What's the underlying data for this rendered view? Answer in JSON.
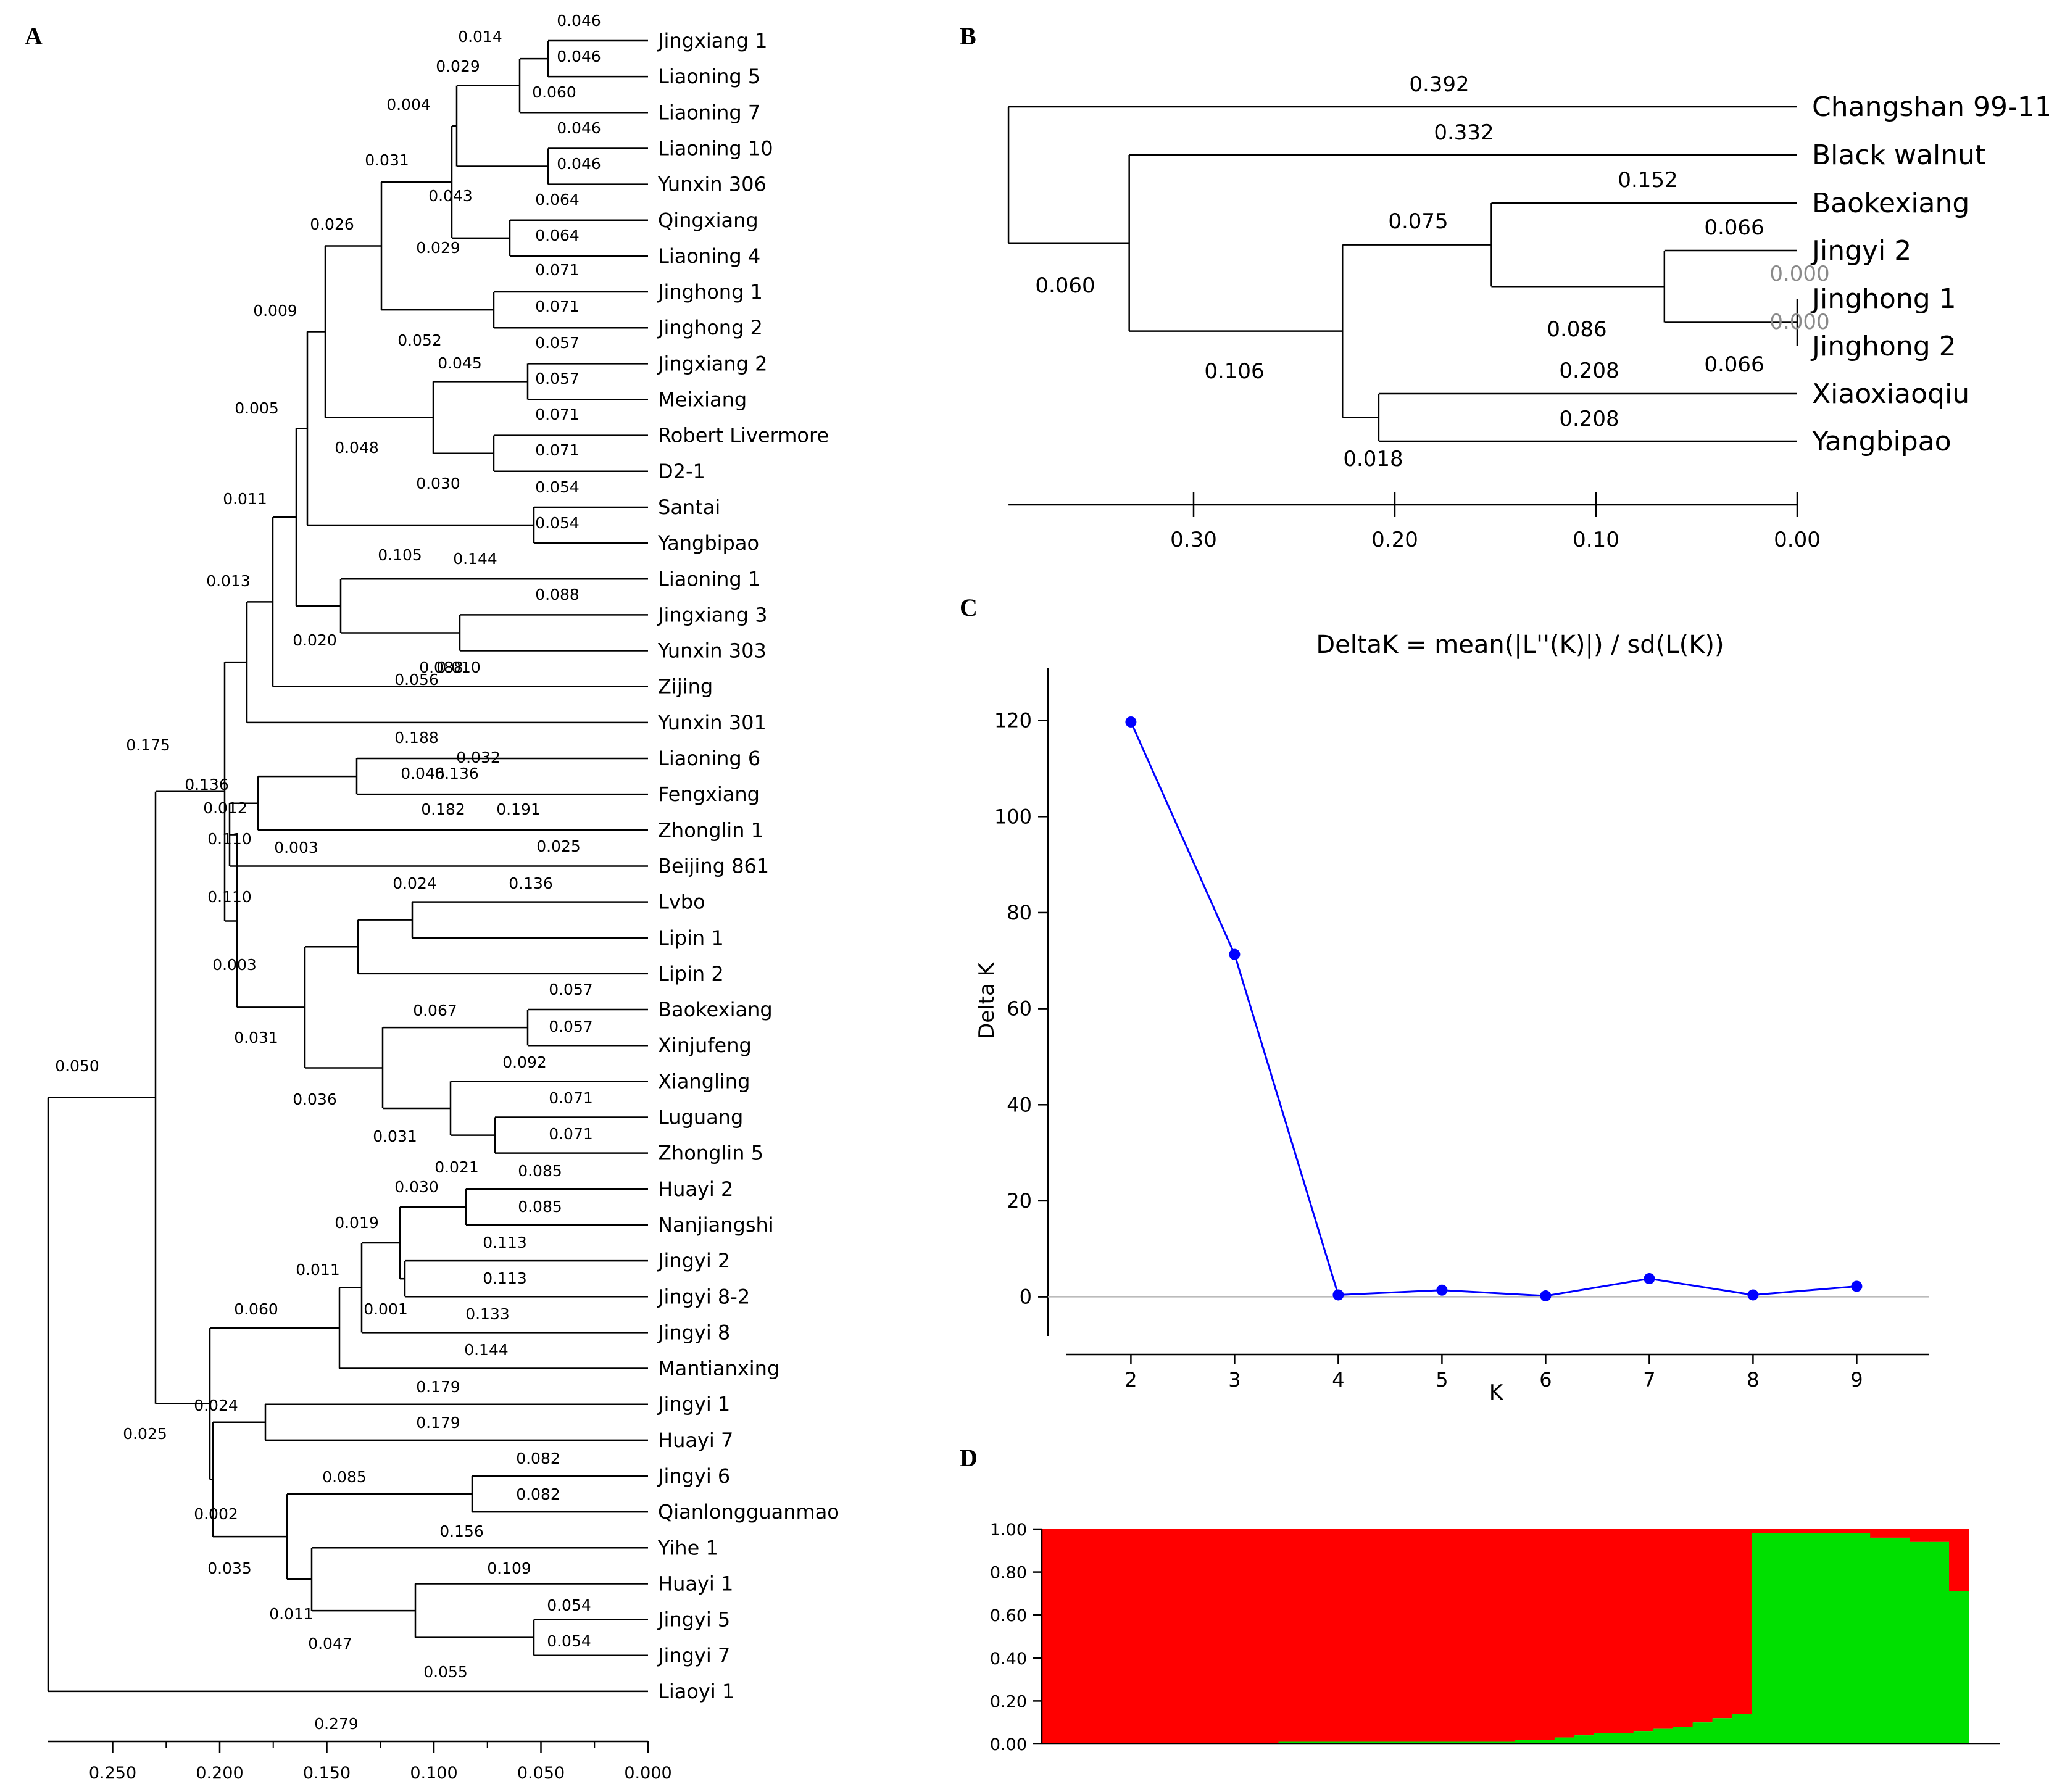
{
  "panels": {
    "A": {
      "letter": "A",
      "leaves": [
        "Jingxiang 1",
        "Liaoning 5",
        "Liaoning 7",
        "Liaoning 10",
        "Yunxin 306",
        "Qingxiang",
        "Liaoning 4",
        "Jinghong 1",
        "Jinghong 2",
        "Jingxiang 2",
        "Meixiang",
        "Robert Livermore",
        "D2-1",
        "Santai",
        "Yangbipao",
        "Liaoning 1",
        "Jingxiang 3",
        "Yunxin 303",
        "Zijing",
        "Yunxin 301",
        "Liaoning 6",
        "Fengxiang",
        "Zhonglin 1",
        "Beijing 861",
        "Lvbo",
        "Lipin 1",
        "Lipin 2",
        "Baokexiang",
        "Xinjufeng",
        "Xiangling",
        "Luguang",
        "Zhonglin 5",
        "Huayi 2",
        "Nanjiangshi",
        "Jingyi 2",
        "Jingyi 8-2",
        "Jingyi 8",
        "Mantianxing",
        "Jingyi 1",
        "Huayi 7",
        "Jingyi 6",
        "Qianlongguanmao",
        "Yihe 1",
        "Huayi 1",
        "Jingyi 5",
        "Jingyi 7",
        "Liaoyi 1"
      ],
      "axis_ticks": [
        "0.250",
        "0.200",
        "0.150",
        "0.100",
        "0.050",
        "0.000"
      ],
      "branch_labels": [
        "0.046",
        "0.014",
        "0.046",
        "0.029",
        "0.060",
        "0.004",
        "0.046",
        "0.031",
        "0.046",
        "0.043",
        "0.064",
        "0.026",
        "0.064",
        "0.029",
        "0.071",
        "0.009",
        "0.071",
        "0.052",
        "0.057",
        "0.045",
        "0.057",
        "0.005",
        "0.071",
        "0.048",
        "0.071",
        "0.030",
        "0.054",
        "0.011",
        "0.054",
        "0.105",
        "0.144",
        "0.013",
        "0.088",
        "0.020",
        "0.088",
        "0.010",
        "0.056",
        "0.175",
        "0.188",
        "0.032",
        "0.136",
        "0.046",
        "0.136",
        "0.012",
        "0.182",
        "0.191",
        "0.110",
        "0.003",
        "0.025",
        "0.110",
        "0.024",
        "0.136",
        "0.003",
        "0.057",
        "0.067",
        "0.057",
        "0.031",
        "0.092",
        "0.036",
        "0.071",
        "0.071",
        "0.031",
        "0.021",
        "0.085",
        "0.030",
        "0.085",
        "0.019",
        "0.113",
        "0.011",
        "0.113",
        "0.001",
        "0.133",
        "0.060",
        "0.144",
        "0.050",
        "0.179",
        "0.024",
        "0.179",
        "0.025",
        "0.082",
        "0.085",
        "0.082",
        "0.002",
        "0.156",
        "0.035",
        "0.109",
        "0.011",
        "0.054",
        "0.047",
        "0.054",
        "0.055",
        "0.279"
      ]
    },
    "B": {
      "letter": "B",
      "leaves": [
        "Changshan 99-11",
        "Black walnut",
        "Baokexiang",
        "Jingyi 2",
        "Jinghong 1",
        "Jinghong 2",
        "Xiaoxiaoqiu",
        "Yangbipao"
      ],
      "axis_ticks": [
        "0.30",
        "0.20",
        "0.10",
        "0.00"
      ],
      "branch_labels": [
        "0.392",
        "0.332",
        "0.152",
        "0.075",
        "0.066",
        "0.060",
        "0.000",
        "0.086",
        "0.000",
        "0.106",
        "0.208",
        "0.066",
        "0.208",
        "0.018"
      ]
    },
    "C": {
      "letter": "C",
      "title": "DeltaK = mean(|L''(K)|) / sd(L(K))",
      "xlabel": "K",
      "ylabel": "Delta K"
    },
    "D": {
      "letter": "D",
      "ytick_labels": [
        "1.00",
        "0.80",
        "0.60",
        "0.40",
        "0.20",
        "0.00"
      ]
    }
  },
  "chart_data": [
    {
      "type": "dendrogram",
      "panel": "A",
      "leaves": [
        "Jingxiang 1",
        "Liaoning 5",
        "Liaoning 7",
        "Liaoning 10",
        "Yunxin 306",
        "Qingxiang",
        "Liaoning 4",
        "Jinghong 1",
        "Jinghong 2",
        "Jingxiang 2",
        "Meixiang",
        "Robert Livermore",
        "D2-1",
        "Santai",
        "Yangbipao",
        "Liaoning 1",
        "Jingxiang 3",
        "Yunxin 303",
        "Zijing",
        "Yunxin 301",
        "Liaoning 6",
        "Fengxiang",
        "Zhonglin 1",
        "Beijing 861",
        "Lvbo",
        "Lipin 1",
        "Lipin 2",
        "Baokexiang",
        "Xinjufeng",
        "Xiangling",
        "Luguang",
        "Zhonglin 5",
        "Huayi 2",
        "Nanjiangshi",
        "Jingyi 2",
        "Jingyi 8-2",
        "Jingyi 8",
        "Mantianxing",
        "Jingyi 1",
        "Huayi 7",
        "Jingyi 6",
        "Qianlongguanmao",
        "Yihe 1",
        "Huayi 1",
        "Jingyi 5",
        "Jingyi 7",
        "Liaoyi 1"
      ],
      "x_axis": {
        "range": [
          0.279,
          0.0
        ],
        "ticks": [
          0.25,
          0.2,
          0.15,
          0.1,
          0.05,
          0.0
        ]
      }
    },
    {
      "type": "dendrogram",
      "panel": "B",
      "leaves": [
        "Changshan 99-11",
        "Black walnut",
        "Baokexiang",
        "Jingyi 2",
        "Jinghong 1",
        "Jinghong 2",
        "Xiaoxiaoqiu",
        "Yangbipao"
      ],
      "x_axis": {
        "range": [
          0.392,
          0.0
        ],
        "ticks": [
          0.3,
          0.2,
          0.1,
          0.0
        ]
      }
    },
    {
      "type": "line",
      "panel": "C",
      "title": "DeltaK = mean(|L''(K)|) / sd(L(K))",
      "xlabel": "K",
      "ylabel": "Delta K",
      "x": [
        2,
        3,
        4,
        5,
        6,
        7,
        8,
        9
      ],
      "y": [
        119.7,
        71.3,
        0.4,
        1.4,
        0.2,
        3.8,
        0.4,
        2.2
      ],
      "xlim": [
        1.2,
        9.7
      ],
      "ylim": [
        -12,
        131
      ],
      "yticks": [
        0,
        20,
        40,
        60,
        80,
        100,
        120
      ],
      "xticks": [
        2,
        3,
        4,
        5,
        6,
        7,
        8,
        9
      ],
      "line_color": "#0000ff",
      "zero_line": true
    },
    {
      "type": "stacked_bar",
      "panel": "D",
      "ylim": [
        0,
        1
      ],
      "yticks": [
        0,
        0.2,
        0.4,
        0.6,
        0.8,
        1.0
      ],
      "n_individuals": 47,
      "series": [
        {
          "color": "#ff0000",
          "values": [
            1,
            1,
            1,
            1,
            1,
            1,
            1,
            1,
            1,
            1,
            1,
            1,
            0.99,
            0.99,
            0.99,
            0.99,
            0.99,
            0.99,
            0.99,
            0.99,
            0.99,
            0.99,
            0.99,
            0.99,
            0.98,
            0.98,
            0.97,
            0.96,
            0.95,
            0.95,
            0.94,
            0.93,
            0.92,
            0.9,
            0.88,
            0.86,
            0.02,
            0.02,
            0.02,
            0.02,
            0.02,
            0.02,
            0.04,
            0.04,
            0.06,
            0.06,
            0.29
          ]
        },
        {
          "color": "#00e000",
          "values": [
            0,
            0,
            0,
            0,
            0,
            0,
            0,
            0,
            0,
            0,
            0,
            0,
            0.01,
            0.01,
            0.01,
            0.01,
            0.01,
            0.01,
            0.01,
            0.01,
            0.01,
            0.01,
            0.01,
            0.01,
            0.02,
            0.02,
            0.03,
            0.04,
            0.05,
            0.05,
            0.06,
            0.07,
            0.08,
            0.1,
            0.12,
            0.14,
            0.98,
            0.98,
            0.98,
            0.98,
            0.98,
            0.98,
            0.96,
            0.96,
            0.94,
            0.94,
            0.71
          ]
        }
      ]
    }
  ]
}
